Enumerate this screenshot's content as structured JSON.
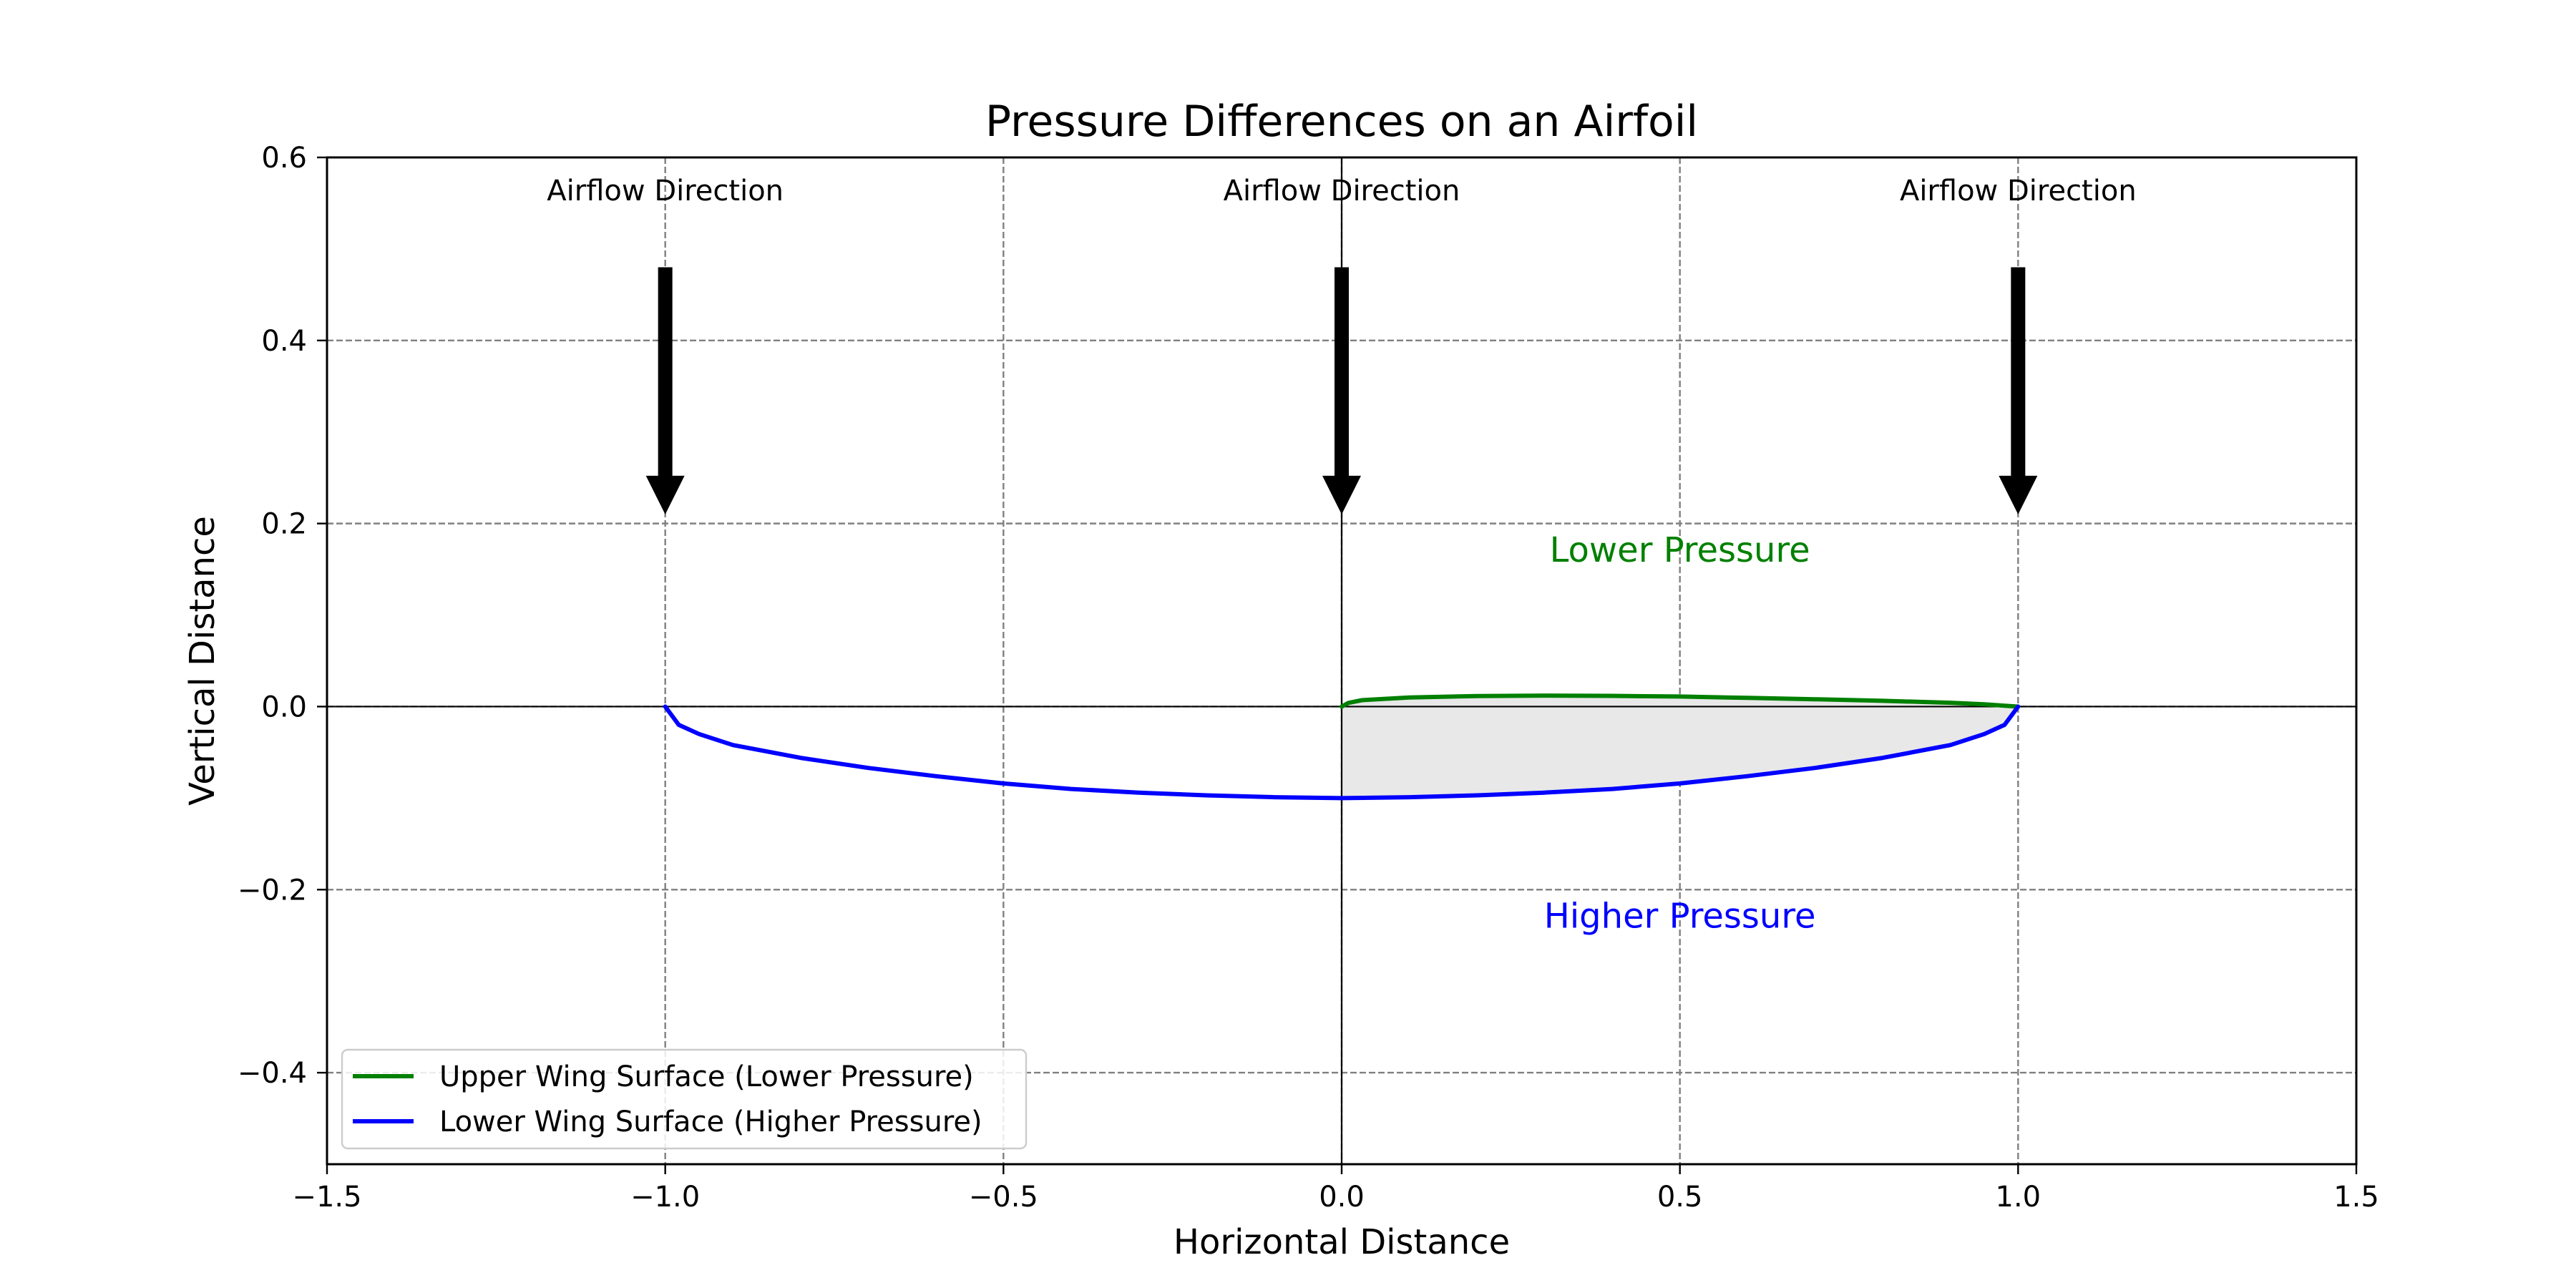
{
  "chart_data": {
    "type": "line",
    "title": "Pressure Differences on an Airfoil",
    "xlabel": "Horizontal Distance",
    "ylabel": "Vertical Distance",
    "xlim": [
      -1.5,
      1.5
    ],
    "ylim": [
      -0.5,
      0.6
    ],
    "xticks": [
      -1.5,
      -1.0,
      -0.5,
      0.0,
      0.5,
      1.0,
      1.5
    ],
    "xtick_labels": [
      "−1.5",
      "−1.0",
      "−0.5",
      "0.0",
      "0.5",
      "1.0",
      "1.5"
    ],
    "yticks": [
      -0.4,
      -0.2,
      0.0,
      0.2,
      0.4,
      0.6
    ],
    "ytick_labels": [
      "−0.4",
      "−0.2",
      "0.0",
      "0.2",
      "0.4",
      "0.6"
    ],
    "grid": true,
    "reference_lines": {
      "x": 0.0,
      "y": 0.0
    },
    "series": [
      {
        "name": "Upper Wing Surface (Lower Pressure)",
        "color": "#008000",
        "x": [
          0.0,
          0.01,
          0.03,
          0.1,
          0.2,
          0.3,
          0.4,
          0.5,
          0.6,
          0.7,
          0.8,
          0.9,
          0.95,
          1.0
        ],
        "y": [
          0.0,
          0.004,
          0.007,
          0.01,
          0.0115,
          0.012,
          0.0117,
          0.011,
          0.0095,
          0.008,
          0.0063,
          0.0042,
          0.0025,
          0.0
        ]
      },
      {
        "name": "Lower Wing Surface (Higher Pressure)",
        "color": "#0000ff",
        "x": [
          -1.0,
          -0.98,
          -0.95,
          -0.9,
          -0.8,
          -0.7,
          -0.6,
          -0.5,
          -0.4,
          -0.3,
          -0.2,
          -0.1,
          0.0,
          0.1,
          0.2,
          0.3,
          0.4,
          0.5,
          0.6,
          0.7,
          0.8,
          0.9,
          0.95,
          0.98,
          1.0
        ],
        "y": [
          0.0,
          -0.02,
          -0.03,
          -0.042,
          -0.056,
          -0.067,
          -0.076,
          -0.084,
          -0.09,
          -0.094,
          -0.097,
          -0.099,
          -0.1,
          -0.099,
          -0.097,
          -0.094,
          -0.09,
          -0.084,
          -0.076,
          -0.067,
          -0.056,
          -0.042,
          -0.03,
          -0.02,
          0.0
        ]
      }
    ],
    "fill_between": {
      "x_from": 0.0,
      "x_to": 1.0,
      "color": "#e8e8e8"
    },
    "arrows": [
      {
        "x": -1.0,
        "y_from": 0.48,
        "y_to": 0.21,
        "label": "Airflow Direction"
      },
      {
        "x": 0.0,
        "y_from": 0.48,
        "y_to": 0.21,
        "label": "Airflow Direction"
      },
      {
        "x": 1.0,
        "y_from": 0.48,
        "y_to": 0.21,
        "label": "Airflow Direction"
      }
    ],
    "annotations": [
      {
        "text": "Lower Pressure",
        "x": 0.5,
        "y": 0.16,
        "color": "#008000"
      },
      {
        "text": "Higher Pressure",
        "x": 0.5,
        "y": -0.24,
        "color": "#0000ff"
      }
    ],
    "legend_position": "lower-left"
  }
}
